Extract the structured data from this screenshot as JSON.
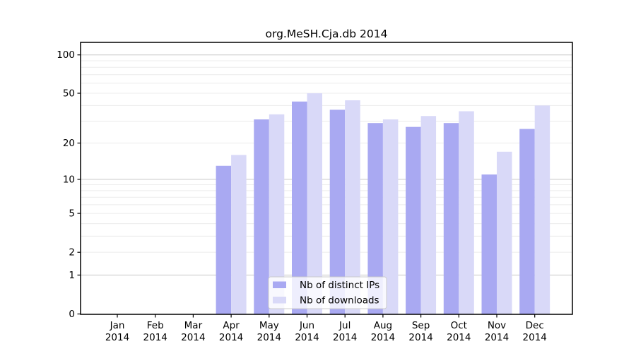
{
  "chart_data": {
    "type": "bar",
    "title": "org.MeSH.Cja.db 2014",
    "categories": [
      "Jan 2014",
      "Feb 2014",
      "Mar 2014",
      "Apr 2014",
      "May 2014",
      "Jun 2014",
      "Jul 2014",
      "Aug 2014",
      "Sep 2014",
      "Oct 2014",
      "Nov 2014",
      "Dec 2014"
    ],
    "months": [
      {
        "month": "Jan",
        "year": "2014"
      },
      {
        "month": "Feb",
        "year": "2014"
      },
      {
        "month": "Mar",
        "year": "2014"
      },
      {
        "month": "Apr",
        "year": "2014"
      },
      {
        "month": "May",
        "year": "2014"
      },
      {
        "month": "Jun",
        "year": "2014"
      },
      {
        "month": "Jul",
        "year": "2014"
      },
      {
        "month": "Aug",
        "year": "2014"
      },
      {
        "month": "Sep",
        "year": "2014"
      },
      {
        "month": "Oct",
        "year": "2014"
      },
      {
        "month": "Nov",
        "year": "2014"
      },
      {
        "month": "Dec",
        "year": "2014"
      }
    ],
    "series": [
      {
        "name": "Nb of distinct IPs",
        "color": "#a9a9f2",
        "values": [
          0,
          0,
          0,
          13,
          31,
          43,
          37,
          29,
          27,
          29,
          11,
          26
        ]
      },
      {
        "name": "Nb of downloads",
        "color": "#d9d9f8",
        "values": [
          0,
          0,
          0,
          16,
          34,
          50,
          44,
          31,
          33,
          36,
          17,
          40
        ]
      }
    ],
    "xlabel": "",
    "ylabel": "",
    "yscale": "log1p",
    "ytick_values": [
      0,
      1,
      2,
      5,
      10,
      20,
      50,
      100
    ],
    "grid_minor_values": [
      2,
      3,
      4,
      5,
      6,
      7,
      8,
      9,
      20,
      30,
      40,
      50,
      60,
      70,
      80,
      90
    ],
    "grid_major_values": [
      1,
      10,
      100
    ],
    "ylim": [
      0,
      126
    ],
    "grid": "horizontal",
    "legend_position": "inside-bottom-center"
  },
  "colors": {
    "background": "#ffffff",
    "frame": "#000000",
    "grid_major": "#c8c8c8",
    "grid_minor": "#ececec",
    "tick": "#000000",
    "legend_border": "#cccccc",
    "legend_bg": "rgba(255,255,255,0.8)"
  }
}
